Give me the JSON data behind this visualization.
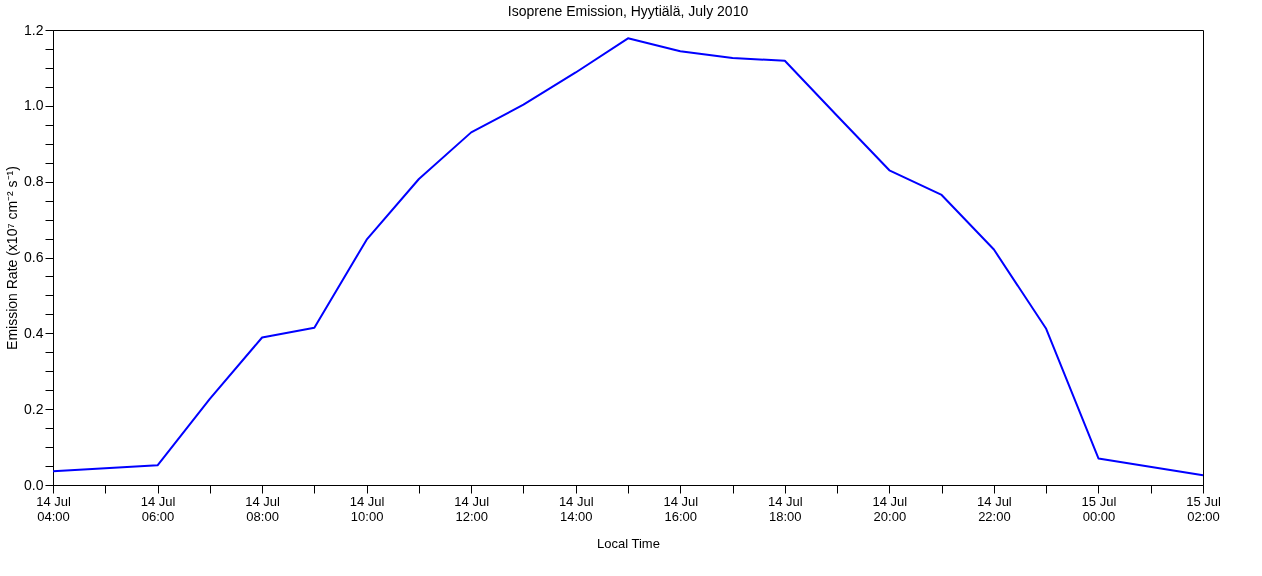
{
  "chart_data": {
    "type": "line",
    "title": "Isoprene Emission, Hyytiälä, July 2010",
    "xlabel": "Local Time",
    "ylabel": "Emission Rate (x10⁷ cm⁻² s⁻¹)",
    "x": [
      "2010-07-14T04:00",
      "2010-07-14T06:00",
      "2010-07-14T07:00",
      "2010-07-14T08:00",
      "2010-07-14T09:00",
      "2010-07-14T10:00",
      "2010-07-14T11:00",
      "2010-07-14T12:00",
      "2010-07-14T13:00",
      "2010-07-14T14:00",
      "2010-07-14T15:00",
      "2010-07-14T16:00",
      "2010-07-14T17:00",
      "2010-07-14T18:00",
      "2010-07-14T19:00",
      "2010-07-14T20:00",
      "2010-07-14T21:00",
      "2010-07-14T22:00",
      "2010-07-14T23:00",
      "2010-07-15T00:00",
      "2010-07-15T02:00"
    ],
    "series": [
      {
        "color": "#0000ff",
        "values": [
          0.036,
          0.052,
          0.227,
          0.389,
          0.415,
          0.647,
          0.807,
          0.93,
          1.003,
          1.088,
          1.178,
          1.144,
          1.126,
          1.119,
          0.974,
          0.83,
          0.765,
          0.621,
          0.412,
          0.07,
          0.026
        ]
      }
    ],
    "xlim": [
      "2010-07-14T04:00",
      "2010-07-15T02:00"
    ],
    "xticks": [
      {
        "value": "2010-07-14T04:00",
        "label": "14 Jul\n04:00"
      },
      {
        "value": "2010-07-14T05:00",
        "label": null
      },
      {
        "value": "2010-07-14T06:00",
        "label": "14 Jul\n06:00"
      },
      {
        "value": "2010-07-14T07:00",
        "label": null
      },
      {
        "value": "2010-07-14T08:00",
        "label": "14 Jul\n08:00"
      },
      {
        "value": "2010-07-14T09:00",
        "label": null
      },
      {
        "value": "2010-07-14T10:00",
        "label": "14 Jul\n10:00"
      },
      {
        "value": "2010-07-14T11:00",
        "label": null
      },
      {
        "value": "2010-07-14T12:00",
        "label": "14 Jul\n12:00"
      },
      {
        "value": "2010-07-14T13:00",
        "label": null
      },
      {
        "value": "2010-07-14T14:00",
        "label": "14 Jul\n14:00"
      },
      {
        "value": "2010-07-14T15:00",
        "label": null
      },
      {
        "value": "2010-07-14T16:00",
        "label": "14 Jul\n16:00"
      },
      {
        "value": "2010-07-14T17:00",
        "label": null
      },
      {
        "value": "2010-07-14T18:00",
        "label": "14 Jul\n18:00"
      },
      {
        "value": "2010-07-14T19:00",
        "label": null
      },
      {
        "value": "2010-07-14T20:00",
        "label": "14 Jul\n20:00"
      },
      {
        "value": "2010-07-14T21:00",
        "label": null
      },
      {
        "value": "2010-07-14T22:00",
        "label": "14 Jul\n22:00"
      },
      {
        "value": "2010-07-14T23:00",
        "label": null
      },
      {
        "value": "2010-07-15T00:00",
        "label": "15 Jul\n00:00"
      },
      {
        "value": "2010-07-15T01:00",
        "label": null
      },
      {
        "value": "2010-07-15T02:00",
        "label": "15 Jul\n02:00"
      }
    ],
    "ylim": [
      0,
      1.2
    ],
    "yticks": [
      {
        "value": 0,
        "label": "0.0"
      },
      {
        "value": 0.05,
        "label": null
      },
      {
        "value": 0.1,
        "label": null
      },
      {
        "value": 0.15,
        "label": null
      },
      {
        "value": 0.2,
        "label": "0.2"
      },
      {
        "value": 0.25,
        "label": null
      },
      {
        "value": 0.3,
        "label": null
      },
      {
        "value": 0.35,
        "label": null
      },
      {
        "value": 0.4,
        "label": "0.4"
      },
      {
        "value": 0.45,
        "label": null
      },
      {
        "value": 0.5,
        "label": null
      },
      {
        "value": 0.55,
        "label": null
      },
      {
        "value": 0.6,
        "label": "0.6"
      },
      {
        "value": 0.65,
        "label": null
      },
      {
        "value": 0.7,
        "label": null
      },
      {
        "value": 0.75,
        "label": null
      },
      {
        "value": 0.8,
        "label": "0.8"
      },
      {
        "value": 0.85,
        "label": null
      },
      {
        "value": 0.9,
        "label": null
      },
      {
        "value": 0.95,
        "label": null
      },
      {
        "value": 1.0,
        "label": "1.0"
      },
      {
        "value": 1.05,
        "label": null
      },
      {
        "value": 1.1,
        "label": null
      },
      {
        "value": 1.15,
        "label": null
      },
      {
        "value": 1.2,
        "label": "1.2"
      }
    ],
    "grid": false,
    "marker": "none",
    "line_style": "solid"
  }
}
